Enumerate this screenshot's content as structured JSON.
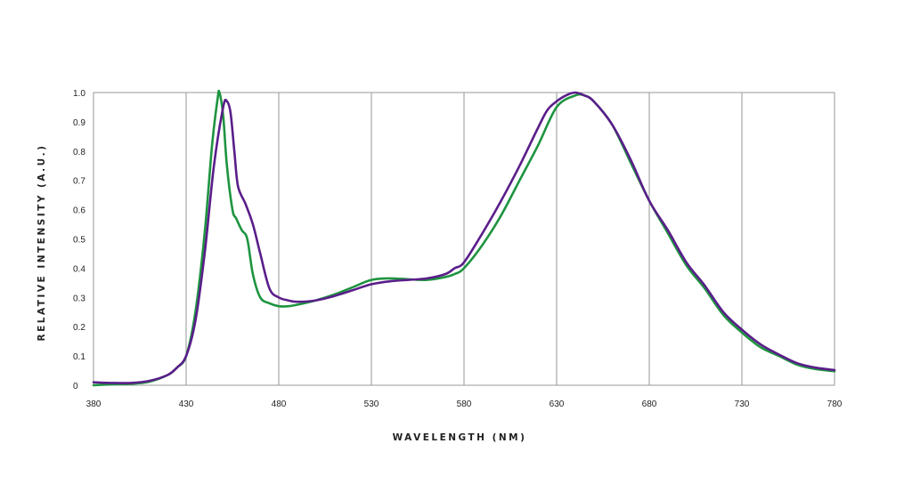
{
  "chart_data": {
    "type": "line",
    "title": "",
    "xlabel": "WAVELENGTH (NM)",
    "ylabel": "RELATIVE INTENSITY (A.U.)",
    "xlim": [
      380,
      780
    ],
    "ylim": [
      0,
      1.0
    ],
    "x_ticks": [
      "380",
      "430",
      "480",
      "530",
      "580",
      "630",
      "680",
      "730",
      "780"
    ],
    "y_ticks": [
      "0",
      "0.1",
      "0.2",
      "0.3",
      "0.4",
      "0.5",
      "0.6",
      "0.7",
      "0.8",
      "0.9",
      "1.0"
    ],
    "grid": {
      "vertical": true,
      "horizontal": false
    },
    "legend": "none",
    "series": [
      {
        "color": "#1e9440",
        "points": [
          [
            380,
            0.0
          ],
          [
            390,
            0.003
          ],
          [
            400,
            0.005
          ],
          [
            410,
            0.012
          ],
          [
            420,
            0.035
          ],
          [
            425,
            0.06
          ],
          [
            430,
            0.1
          ],
          [
            435,
            0.25
          ],
          [
            440,
            0.52
          ],
          [
            444,
            0.82
          ],
          [
            447,
            0.98
          ],
          [
            448,
            1.0
          ],
          [
            450,
            0.92
          ],
          [
            452,
            0.75
          ],
          [
            455,
            0.6
          ],
          [
            457,
            0.57
          ],
          [
            460,
            0.53
          ],
          [
            463,
            0.5
          ],
          [
            466,
            0.38
          ],
          [
            470,
            0.3
          ],
          [
            475,
            0.28
          ],
          [
            480,
            0.27
          ],
          [
            485,
            0.27
          ],
          [
            490,
            0.275
          ],
          [
            500,
            0.29
          ],
          [
            510,
            0.31
          ],
          [
            520,
            0.335
          ],
          [
            530,
            0.36
          ],
          [
            540,
            0.365
          ],
          [
            550,
            0.362
          ],
          [
            560,
            0.36
          ],
          [
            570,
            0.37
          ],
          [
            575,
            0.38
          ],
          [
            580,
            0.4
          ],
          [
            590,
            0.48
          ],
          [
            600,
            0.58
          ],
          [
            610,
            0.7
          ],
          [
            620,
            0.82
          ],
          [
            630,
            0.95
          ],
          [
            640,
            0.99
          ],
          [
            645,
            0.99
          ],
          [
            650,
            0.97
          ],
          [
            660,
            0.89
          ],
          [
            670,
            0.76
          ],
          [
            680,
            0.63
          ],
          [
            690,
            0.52
          ],
          [
            700,
            0.41
          ],
          [
            710,
            0.33
          ],
          [
            720,
            0.24
          ],
          [
            730,
            0.18
          ],
          [
            740,
            0.13
          ],
          [
            750,
            0.1
          ],
          [
            760,
            0.07
          ],
          [
            770,
            0.055
          ],
          [
            780,
            0.048
          ]
        ]
      },
      {
        "color": "#5a1e8a",
        "points": [
          [
            380,
            0.01
          ],
          [
            390,
            0.008
          ],
          [
            400,
            0.008
          ],
          [
            410,
            0.015
          ],
          [
            420,
            0.035
          ],
          [
            425,
            0.06
          ],
          [
            430,
            0.1
          ],
          [
            435,
            0.22
          ],
          [
            440,
            0.45
          ],
          [
            445,
            0.75
          ],
          [
            450,
            0.95
          ],
          [
            452,
            0.97
          ],
          [
            454,
            0.93
          ],
          [
            456,
            0.8
          ],
          [
            458,
            0.68
          ],
          [
            462,
            0.62
          ],
          [
            466,
            0.55
          ],
          [
            470,
            0.45
          ],
          [
            475,
            0.33
          ],
          [
            480,
            0.3
          ],
          [
            485,
            0.29
          ],
          [
            490,
            0.285
          ],
          [
            500,
            0.29
          ],
          [
            510,
            0.305
          ],
          [
            520,
            0.325
          ],
          [
            530,
            0.345
          ],
          [
            540,
            0.355
          ],
          [
            550,
            0.36
          ],
          [
            560,
            0.365
          ],
          [
            570,
            0.38
          ],
          [
            575,
            0.4
          ],
          [
            580,
            0.42
          ],
          [
            590,
            0.52
          ],
          [
            600,
            0.63
          ],
          [
            610,
            0.75
          ],
          [
            620,
            0.88
          ],
          [
            625,
            0.94
          ],
          [
            630,
            0.97
          ],
          [
            635,
            0.99
          ],
          [
            640,
            1.0
          ],
          [
            645,
            0.99
          ],
          [
            650,
            0.97
          ],
          [
            660,
            0.89
          ],
          [
            670,
            0.77
          ],
          [
            680,
            0.63
          ],
          [
            690,
            0.53
          ],
          [
            700,
            0.42
          ],
          [
            710,
            0.34
          ],
          [
            720,
            0.25
          ],
          [
            730,
            0.19
          ],
          [
            740,
            0.14
          ],
          [
            750,
            0.105
          ],
          [
            760,
            0.075
          ],
          [
            770,
            0.06
          ],
          [
            780,
            0.052
          ]
        ]
      }
    ]
  }
}
